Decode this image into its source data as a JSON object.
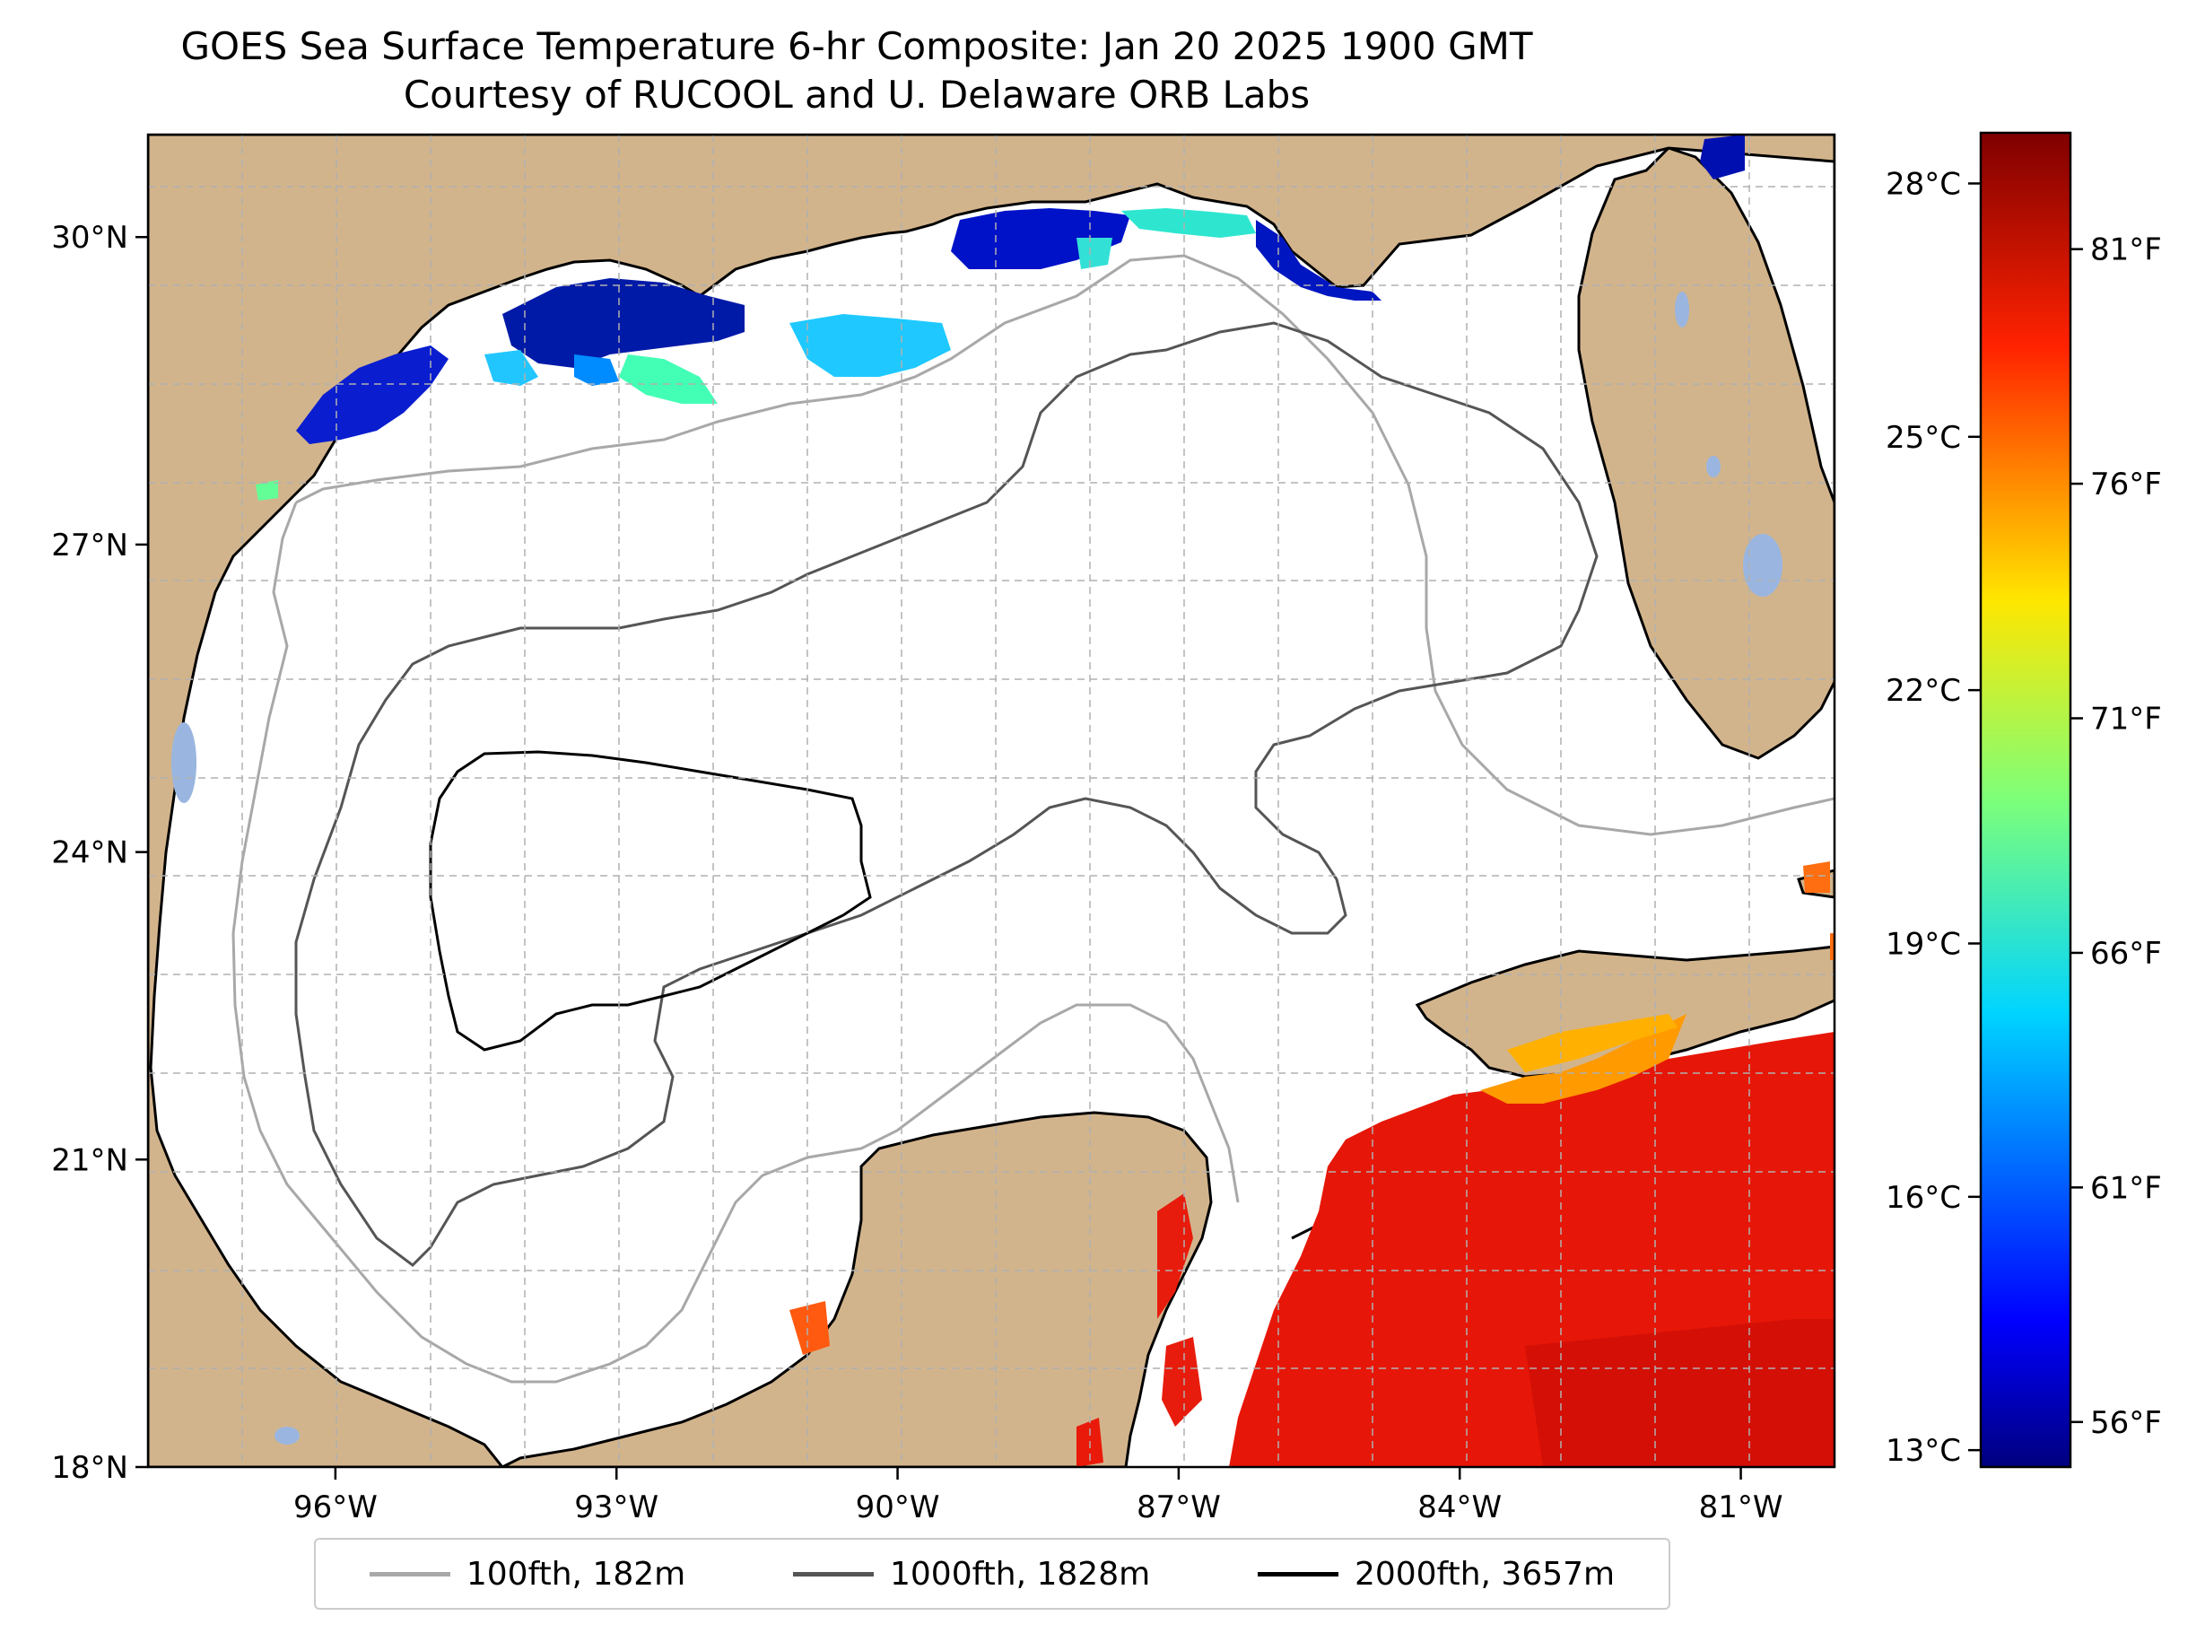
{
  "title_line1": "GOES Sea Surface Temperature 6-hr Composite: Jan 20 2025 1900 GMT",
  "title_line2": "Courtesy of RUCOOL and U. Delaware ORB Labs",
  "map": {
    "lon_range": [
      -98,
      -80
    ],
    "lat_range": [
      18,
      31
    ],
    "lon_ticks": [
      {
        "value": -96,
        "label": "96°W"
      },
      {
        "value": -93,
        "label": "93°W"
      },
      {
        "value": -90,
        "label": "90°W"
      },
      {
        "value": -87,
        "label": "87°W"
      },
      {
        "value": -84,
        "label": "84°W"
      },
      {
        "value": -81,
        "label": "81°W"
      }
    ],
    "lat_ticks": [
      {
        "value": 18,
        "label": "18°N"
      },
      {
        "value": 21,
        "label": "21°N"
      },
      {
        "value": 24,
        "label": "24°N"
      },
      {
        "value": 27,
        "label": "27°N"
      },
      {
        "value": 30,
        "label": "30°N"
      }
    ],
    "land_color": "#d2b48c",
    "lake_color": "#9ab6e0",
    "grid": "dashed"
  },
  "colorbar": {
    "celsius_ticks": [
      {
        "value": 28,
        "label": "28°C"
      },
      {
        "value": 25,
        "label": "25°C"
      },
      {
        "value": 22,
        "label": "22°C"
      },
      {
        "value": 19,
        "label": "19°C"
      },
      {
        "value": 16,
        "label": "16°C"
      },
      {
        "value": 13,
        "label": "13°C"
      }
    ],
    "fahrenheit_ticks": [
      {
        "value": 81,
        "label": "81°F"
      },
      {
        "value": 76,
        "label": "76°F"
      },
      {
        "value": 71,
        "label": "71°F"
      },
      {
        "value": 66,
        "label": "66°F"
      },
      {
        "value": 61,
        "label": "61°F"
      },
      {
        "value": 56,
        "label": "56°F"
      }
    ],
    "range_c": [
      12.8,
      28.6
    ],
    "colormap": "jet"
  },
  "legend": [
    {
      "label": "100fth, 182m",
      "color": "#a8a8a8"
    },
    {
      "label": "1000fth, 1828m",
      "color": "#555555"
    },
    {
      "label": "2000fth, 3657m",
      "color": "#000000"
    }
  ]
}
